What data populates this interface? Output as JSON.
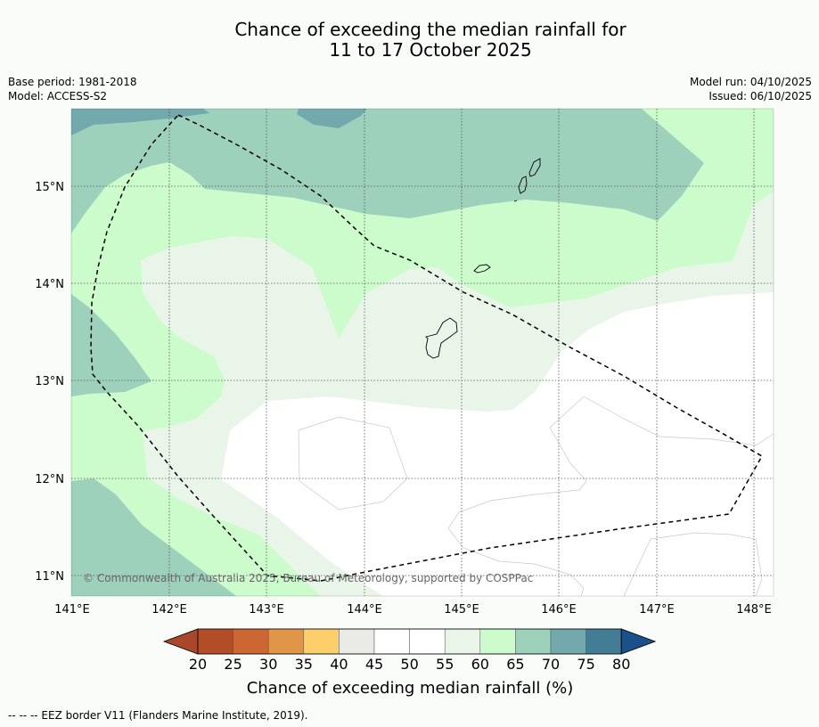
{
  "title": {
    "line1": "Chance of exceeding the median rainfall for",
    "line2": "11 to 17 October 2025"
  },
  "meta_left": {
    "base_period": "Base period: 1981-2018",
    "model": "Model: ACCESS-S2"
  },
  "meta_right": {
    "model_run": "Model run: 04/10/2025",
    "issued": "Issued: 06/10/2025"
  },
  "map": {
    "lat_labels": [
      "15°N",
      "14°N",
      "13°N",
      "12°N",
      "11°N"
    ],
    "lon_labels": [
      "141°E",
      "142°E",
      "143°E",
      "144°E",
      "145°E",
      "146°E",
      "147°E",
      "148°E"
    ],
    "credit": "© Commonwealth of Australia 2025, Bureau of Meteorology, supported by COSPPac",
    "extent": {
      "lon_min": 141.0,
      "lon_max": 148.2,
      "lat_min": 10.8,
      "lat_max": 15.8
    },
    "colors": {
      "p40_50": "#eaeee9",
      "p50_55": "#ffffff",
      "p55_60": "#eaf5ea",
      "p60_65": "#ccfbcc",
      "p65_70": "#9dd1bc",
      "p70_75": "#73a9ad",
      "coast": "#000000",
      "eez": "#000000"
    }
  },
  "colorbar": {
    "ticks": [
      "20",
      "25",
      "30",
      "35",
      "40",
      "45",
      "50",
      "55",
      "60",
      "65",
      "70",
      "75",
      "80"
    ],
    "colors": [
      "#a8472a",
      "#b34d28",
      "#cc6633",
      "#e09548",
      "#fccf6a",
      "#eaeae6",
      "#ffffff",
      "#ffffff",
      "#eaf5ea",
      "#ccfbcc",
      "#9dd1bc",
      "#73a9ad",
      "#427c95",
      "#1b508a"
    ],
    "title": "Chance of exceeding median rainfall (%)"
  },
  "legend_note": "--  --  -- EEZ border V11 (Flanders Marine Institute, 2019)."
}
